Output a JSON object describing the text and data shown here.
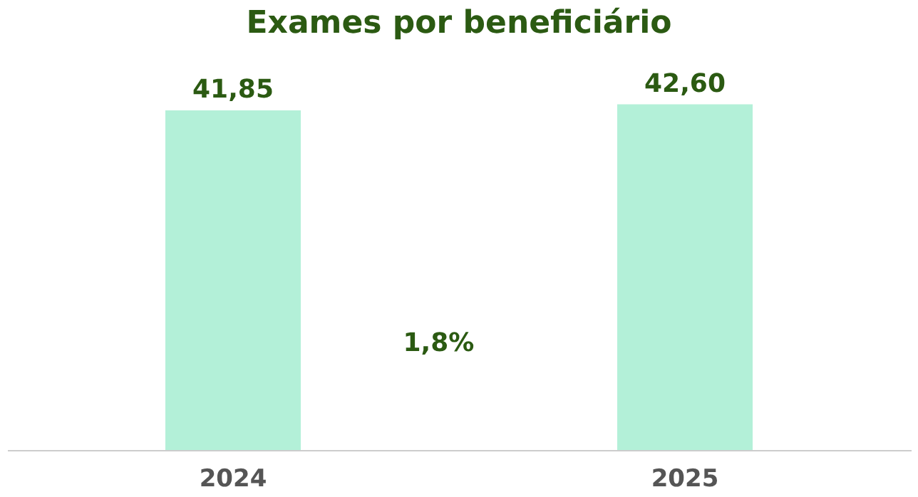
{
  "chart_data": {
    "type": "bar",
    "title": "Exames por beneficiário",
    "categories": [
      "2024",
      "2025"
    ],
    "values": [
      41.85,
      42.6
    ],
    "value_labels": [
      "41,85",
      "42,60"
    ],
    "color": "#b3f0d8",
    "annotations": [
      "1,8%"
    ]
  }
}
